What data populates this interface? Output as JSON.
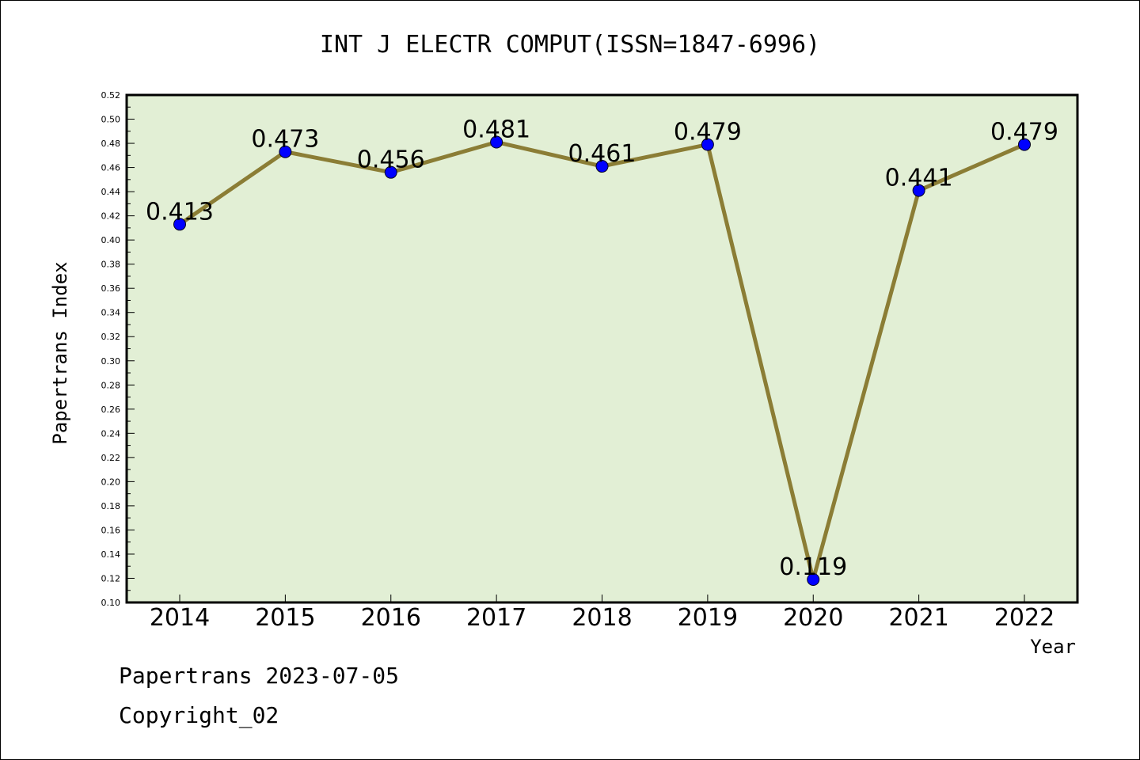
{
  "chart_data": {
    "type": "line",
    "title": "INT J ELECTR COMPUT(ISSN=1847-6996)",
    "xlabel": "Year",
    "ylabel": "Papertrans Index",
    "categories": [
      "2014",
      "2015",
      "2016",
      "2017",
      "2018",
      "2019",
      "2020",
      "2021",
      "2022"
    ],
    "values": [
      0.413,
      0.473,
      0.456,
      0.481,
      0.461,
      0.479,
      0.119,
      0.441,
      0.479
    ],
    "value_labels": [
      "0.413",
      "0.473",
      "0.456",
      "0.481",
      "0.461",
      "0.479",
      "0.119",
      "0.441",
      "0.479"
    ],
    "ylim": [
      0.1,
      0.52
    ],
    "yticks": [
      "0.10",
      "0.12",
      "0.14",
      "0.16",
      "0.18",
      "0.20",
      "0.22",
      "0.24",
      "0.26",
      "0.28",
      "0.30",
      "0.32",
      "0.34",
      "0.36",
      "0.38",
      "0.40",
      "0.42",
      "0.44",
      "0.46",
      "0.48",
      "0.50",
      "0.52"
    ],
    "grid": false,
    "colors": {
      "plot_background": "#e2efd5",
      "line": "#8b7d35",
      "marker": "#0000ff"
    }
  },
  "footer": {
    "line1": "Papertrans 2023-07-05",
    "line2": "Copyright_02"
  }
}
